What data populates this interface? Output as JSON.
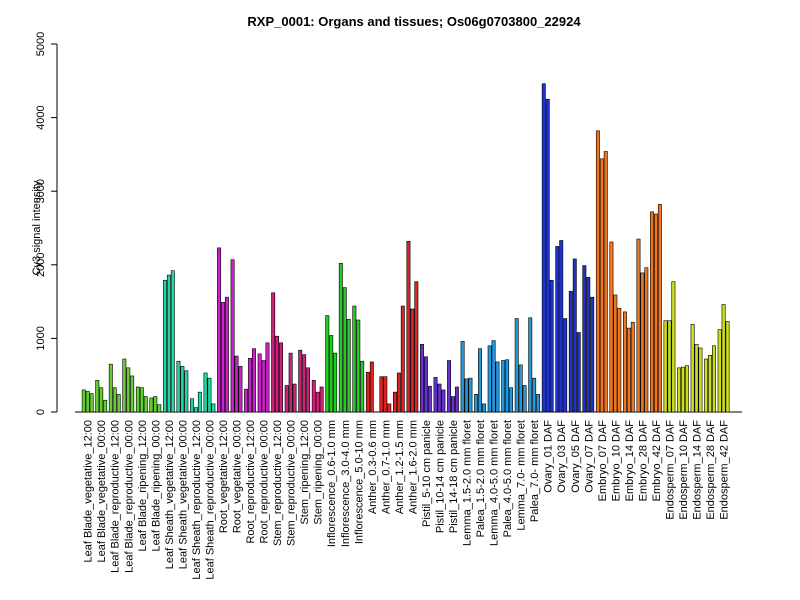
{
  "chart_data": {
    "type": "bar",
    "title": "RXP_0001: Organs and tissues; Os06g0703800_22924",
    "ylabel": "Cy3 signal intensity",
    "xlabel": "",
    "ylim": [
      0,
      5000
    ],
    "yticks": [
      0,
      1000,
      2000,
      3000,
      4000,
      5000
    ],
    "grid": false,
    "legend": "none",
    "groups": [
      {
        "label": "Leaf Blade_vegetative_12:00",
        "color": "#66cc33",
        "values": [
          300,
          280,
          250
        ]
      },
      {
        "label": "Leaf Blade_vegetative_00:00",
        "color": "#66cc33",
        "values": [
          430,
          330,
          160
        ]
      },
      {
        "label": "Leaf Blade_reproductive_12:00",
        "color": "#66cc33",
        "values": [
          650,
          330,
          240
        ]
      },
      {
        "label": "Leaf Blade_reproductive_00:00",
        "color": "#66cc33",
        "values": [
          720,
          600,
          490
        ]
      },
      {
        "label": "Leaf Blade_ripening_12:00",
        "color": "#66cc33",
        "values": [
          340,
          330,
          210
        ]
      },
      {
        "label": "Leaf Blade_ripening_00:00",
        "color": "#66cc33",
        "values": [
          190,
          210,
          100
        ]
      },
      {
        "label": "Leaf Sheath_vegetative_12:00",
        "color": "#22d6a8",
        "values": [
          1790,
          1860,
          1920
        ]
      },
      {
        "label": "Leaf Sheath_vegetative_00:00",
        "color": "#22d6a8",
        "values": [
          690,
          620,
          560
        ]
      },
      {
        "label": "Leaf Sheath_reproductive_12:00",
        "color": "#22d6a8",
        "values": [
          180,
          60,
          270
        ]
      },
      {
        "label": "Leaf Sheath_reproductive_00:00",
        "color": "#22d6a8",
        "values": [
          530,
          460,
          110
        ]
      },
      {
        "label": "Root_vegetative_12:00",
        "color": "#cc22cc",
        "values": [
          2230,
          1490,
          1560
        ]
      },
      {
        "label": "Root_vegetative_00:00",
        "color": "#cc22cc",
        "values": [
          2070,
          760,
          620
        ]
      },
      {
        "label": "Root_reproductive_12:00",
        "color": "#cc22cc",
        "values": [
          310,
          730,
          860
        ]
      },
      {
        "label": "Root_reproductive_00:00",
        "color": "#cc22cc",
        "values": [
          790,
          700,
          940
        ]
      },
      {
        "label": "Stem_reproductive_12:00",
        "color": "#cc2277",
        "values": [
          1620,
          1030,
          940
        ]
      },
      {
        "label": "Stem_reproductive_00:00",
        "color": "#cc2277",
        "values": [
          360,
          800,
          380
        ]
      },
      {
        "label": "Stem_ripening_12:00",
        "color": "#cc2277",
        "values": [
          840,
          780,
          600
        ]
      },
      {
        "label": "Stem_ripening_00:00",
        "color": "#cc2277",
        "values": [
          430,
          270,
          340
        ]
      },
      {
        "label": "Inflorescence_0.6-1.0 mm",
        "color": "#22cc22",
        "values": [
          1310,
          1040,
          800
        ]
      },
      {
        "label": "Inflorescence_3.0-4.0 mm",
        "color": "#22cc22",
        "values": [
          2020,
          1690,
          1260
        ]
      },
      {
        "label": "Inflorescence_5.0-10 mm",
        "color": "#22cc22",
        "values": [
          1440,
          1250,
          690
        ]
      },
      {
        "label": "Anther_0.3-0.6 mm",
        "color": "#dd2222",
        "values": [
          540,
          680,
          0
        ]
      },
      {
        "label": "Anther_0.7-1.0 mm",
        "color": "#dd2222",
        "values": [
          480,
          480,
          110
        ]
      },
      {
        "label": "Anther_1.2-1.5 mm",
        "color": "#dd2222",
        "values": [
          270,
          530,
          1440
        ]
      },
      {
        "label": "Anther_1.6-2.0 mm",
        "color": "#dd2222",
        "values": [
          2320,
          1400,
          1770
        ]
      },
      {
        "label": "Pistil_5-10 cm panicle",
        "color": "#6633cc",
        "values": [
          920,
          750,
          350
        ]
      },
      {
        "label": "Pistil_10-14 cm panicle",
        "color": "#6633cc",
        "values": [
          470,
          380,
          300
        ]
      },
      {
        "label": "Pistil_14-18 cm panicle",
        "color": "#6633cc",
        "values": [
          700,
          210,
          340
        ]
      },
      {
        "label": "Lemma_1.5-2.0 mm floret",
        "color": "#2299dd",
        "values": [
          960,
          450,
          460
        ]
      },
      {
        "label": "Palea_1.5-2.0 mm floret",
        "color": "#2299dd",
        "values": [
          240,
          860,
          110
        ]
      },
      {
        "label": "Lemma_4.0-5.0 mm floret",
        "color": "#2299dd",
        "values": [
          900,
          970,
          680
        ]
      },
      {
        "label": "Palea_4.0-5.0 mm floret",
        "color": "#2299dd",
        "values": [
          700,
          710,
          330
        ]
      },
      {
        "label": "Lemma_7.0- mm floret",
        "color": "#2299dd",
        "values": [
          1270,
          640,
          360
        ]
      },
      {
        "label": "Palea_7.0- mm floret",
        "color": "#2299dd",
        "values": [
          1280,
          460,
          240
        ]
      },
      {
        "label": "Ovary_01 DAF",
        "color": "#1f33cc",
        "values": [
          4460,
          4250,
          1790
        ]
      },
      {
        "label": "Ovary_03 DAF",
        "color": "#1f33cc",
        "values": [
          2250,
          2330,
          1270
        ]
      },
      {
        "label": "Ovary_05 DAF",
        "color": "#1f33cc",
        "values": [
          1640,
          2080,
          1080
        ]
      },
      {
        "label": "Ovary_07 DAF",
        "color": "#1f33cc",
        "values": [
          1990,
          1830,
          1560
        ]
      },
      {
        "label": "Embryo_07 DAF",
        "color": "#ee7722",
        "values": [
          3820,
          3440,
          3540
        ]
      },
      {
        "label": "Embryo_10 DAF",
        "color": "#ee7722",
        "values": [
          2310,
          1590,
          1410
        ]
      },
      {
        "label": "Embryo_14 DAF",
        "color": "#ee7722",
        "values": [
          1360,
          1140,
          1220
        ]
      },
      {
        "label": "Embryo_28 DAF",
        "color": "#ee7722",
        "values": [
          2350,
          1890,
          1960
        ]
      },
      {
        "label": "Embryo_42 DAF",
        "color": "#ee7722",
        "values": [
          2720,
          2690,
          2820
        ]
      },
      {
        "label": "Endosperm_07 DAF",
        "color": "#ccdd22",
        "values": [
          1240,
          1240,
          1770
        ]
      },
      {
        "label": "Endosperm_10 DAF",
        "color": "#ccdd22",
        "values": [
          600,
          610,
          630
        ]
      },
      {
        "label": "Endosperm_14 DAF",
        "color": "#ccdd22",
        "values": [
          1190,
          920,
          870
        ]
      },
      {
        "label": "Endosperm_28 DAF",
        "color": "#ccdd22",
        "values": [
          720,
          770,
          900
        ]
      },
      {
        "label": "Endosperm_42 DAF",
        "color": "#ccdd22",
        "values": [
          1120,
          1460,
          1230
        ]
      }
    ]
  }
}
